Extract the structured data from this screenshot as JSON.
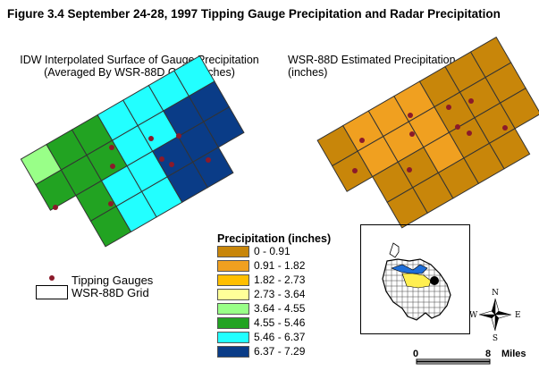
{
  "title": "Figure 3.4  September 24-28, 1997 Tipping Gauge Precipitation and Radar Precipitation",
  "left_map": {
    "title_line1": "IDW Interpolated Surface of Gauge Precipitation",
    "title_line2": "(Averaged By WSR-88D Grid - inches)"
  },
  "right_map": {
    "title_line1": "WSR-88D Estimated Precipitation",
    "title_line2": "(inches)"
  },
  "legend": {
    "title": "Precipitation (inches)",
    "classes": [
      {
        "label": "0 - 0.91",
        "color": "#c8860a"
      },
      {
        "label": "0.91 - 1.82",
        "color": "#f0a020"
      },
      {
        "label": "1.82 - 2.73",
        "color": "#ffbf00"
      },
      {
        "label": "2.73 - 3.64",
        "color": "#ffff99"
      },
      {
        "label": "3.64 - 4.55",
        "color": "#99ff88"
      },
      {
        "label": "4.55 - 5.46",
        "color": "#22a322"
      },
      {
        "label": "5.46 - 6.37",
        "color": "#22ffff"
      },
      {
        "label": "6.37 - 7.29",
        "color": "#0a3c87"
      }
    ],
    "tipping_gauges_label": "Tipping Gauges",
    "grid_label": "WSR-88D Grid"
  },
  "compass": {
    "n": "N",
    "s": "S",
    "e": "E",
    "w": "W"
  },
  "scale_bar": {
    "start": "0",
    "end": "8",
    "unit": "Miles"
  },
  "colors": {
    "gauge_dot": "#8b1a2a"
  }
}
